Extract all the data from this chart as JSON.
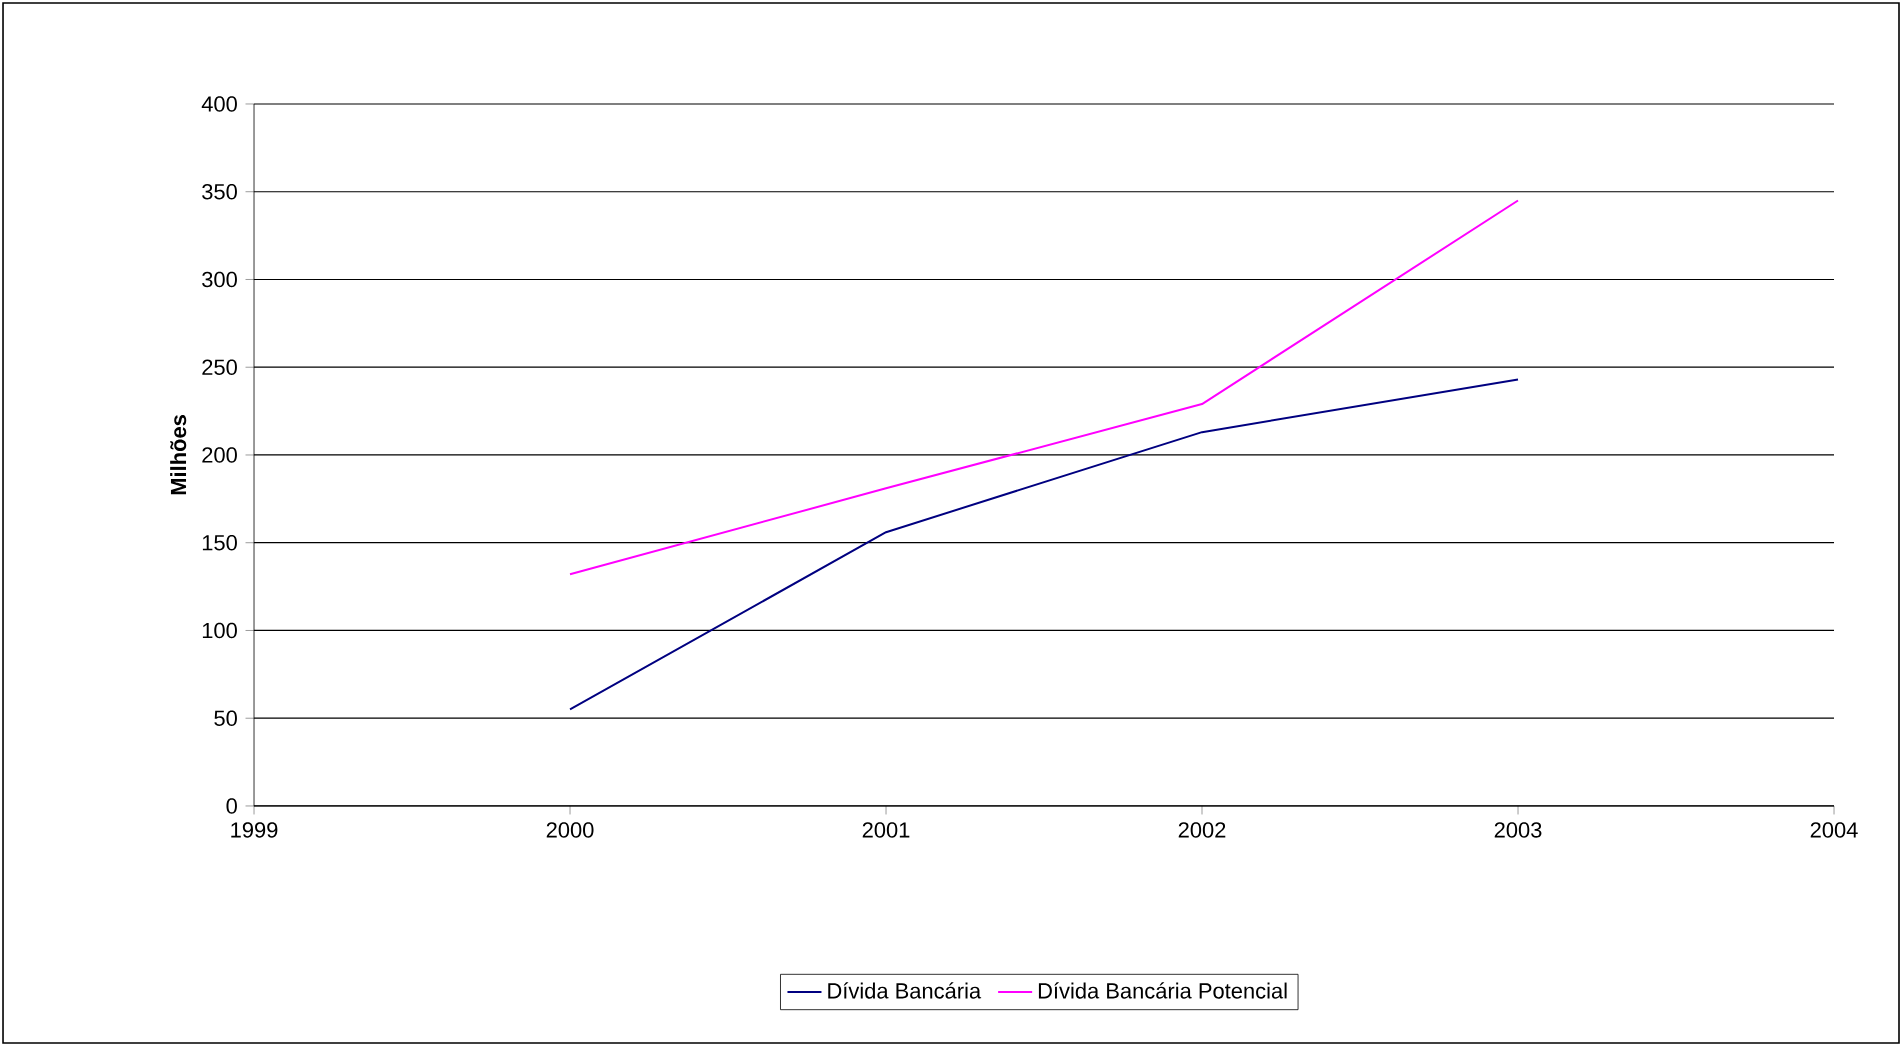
{
  "chart_data": {
    "type": "line",
    "ylabel": "Milhões",
    "x": [
      2000,
      2001,
      2002,
      2003
    ],
    "series": [
      {
        "name": "Dívida Bancária",
        "color": "#000080",
        "values": [
          55,
          156,
          213,
          243
        ]
      },
      {
        "name": "Dívida Bancária Potencial",
        "color": "#ff00ff",
        "values": [
          132,
          181,
          229,
          345
        ]
      }
    ],
    "xlim": [
      1999,
      2004
    ],
    "xticks": [
      1999,
      2000,
      2001,
      2002,
      2003,
      2004
    ],
    "ylim": [
      0,
      400
    ],
    "yticks": [
      0,
      50,
      100,
      150,
      200,
      250,
      300,
      350,
      400
    ],
    "grid": "y",
    "legend": "bottom",
    "marker": "none",
    "line_style": "solid"
  }
}
